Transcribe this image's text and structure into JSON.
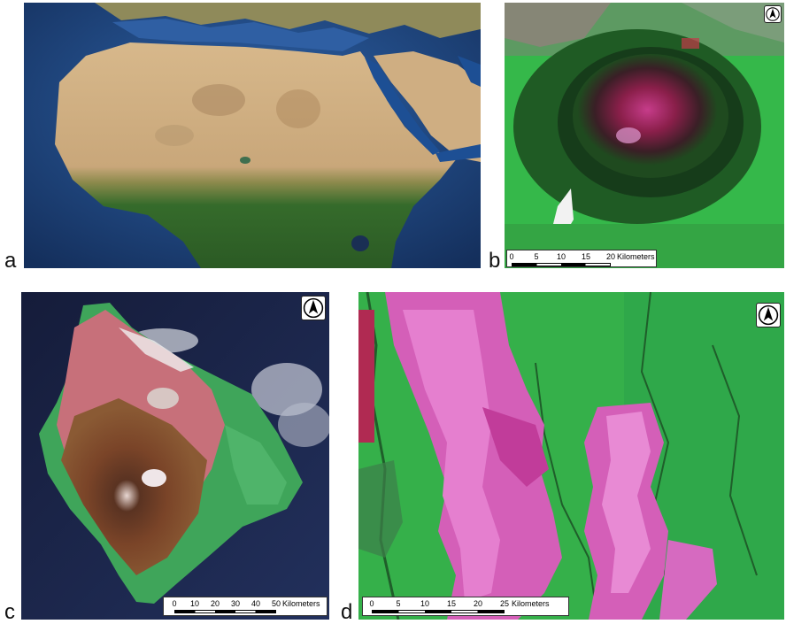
{
  "panels": [
    {
      "letter": "a"
    },
    {
      "letter": "b",
      "scale": {
        "ticks": [
          "0",
          "5",
          "10",
          "15",
          "20"
        ],
        "unit": "Kilometers"
      }
    },
    {
      "letter": "c",
      "scale": {
        "ticks": [
          "0",
          "10",
          "20",
          "30",
          "40",
          "50"
        ],
        "unit": "Kilometers"
      }
    },
    {
      "letter": "d",
      "scale": {
        "ticks": [
          "0",
          "5",
          "10",
          "15",
          "20",
          "25"
        ],
        "unit": "Kilometers"
      }
    }
  ],
  "icons": {
    "north_arrow": "north-arrow-icon"
  },
  "colors": {
    "ocean": "#1f4f8f",
    "desert": "#c9a77a",
    "savanna_green": "#2f6e2a",
    "vegetation_bright_green": "#35b84a",
    "mountain_magenta": "#8a1f4a",
    "lava_brown": "#7a4428",
    "deforest_pink": "#d45fb8"
  }
}
